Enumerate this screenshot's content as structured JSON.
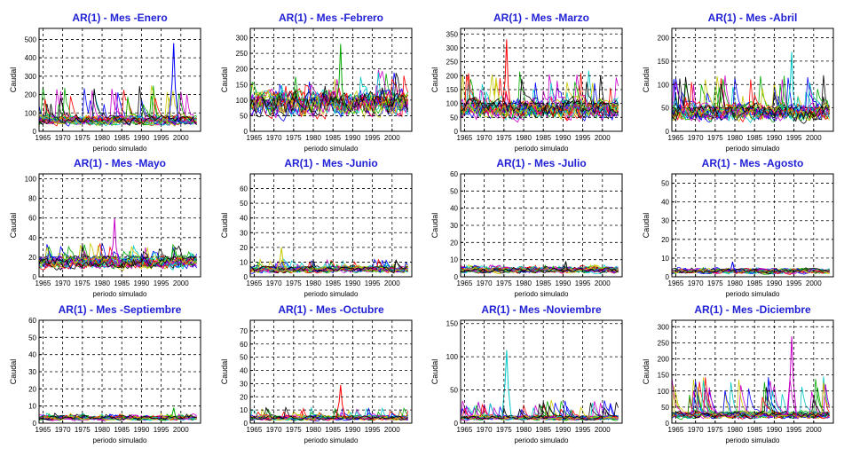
{
  "figure": {
    "xlabel": "periodo simulado",
    "ylabel": "Caudal",
    "title_color": "#1f1fd6",
    "series_colors": [
      "#0000ff",
      "#00aa00",
      "#ff0000",
      "#00c8c8",
      "#c800c8",
      "#c8c800",
      "#000000"
    ]
  },
  "chart_data": [
    {
      "type": "line",
      "title": "AR(1) - Mes -Enero",
      "xlabel": "periodo simulado",
      "ylabel": "Caudal",
      "xlim": [
        1964,
        2005
      ],
      "ylim": [
        0,
        560
      ],
      "xticks": [
        1965,
        1970,
        1975,
        1980,
        1985,
        1990,
        1995,
        2000
      ],
      "yticks": [
        0,
        100,
        200,
        300,
        400,
        500
      ],
      "typical_level": 60,
      "typical_peak": 250,
      "max_peak": 480,
      "grid": true
    },
    {
      "type": "line",
      "title": "AR(1) - Mes -Febrero",
      "xlabel": "periodo simulado",
      "ylabel": "Caudal",
      "xlim": [
        1964,
        2005
      ],
      "ylim": [
        0,
        330
      ],
      "xticks": [
        1965,
        1970,
        1975,
        1980,
        1985,
        1990,
        1995,
        2000
      ],
      "yticks": [
        0,
        50,
        100,
        150,
        200,
        250,
        300
      ],
      "typical_level": 90,
      "typical_peak": 200,
      "max_peak": 280,
      "grid": true
    },
    {
      "type": "line",
      "title": "AR(1) - Mes -Marzo",
      "xlabel": "periodo simulado",
      "ylabel": "Caudal",
      "xlim": [
        1964,
        2005
      ],
      "ylim": [
        0,
        370
      ],
      "xticks": [
        1965,
        1970,
        1975,
        1980,
        1985,
        1990,
        1995,
        2000
      ],
      "yticks": [
        0,
        50,
        100,
        150,
        200,
        250,
        300,
        350
      ],
      "typical_level": 80,
      "typical_peak": 220,
      "max_peak": 330,
      "grid": true
    },
    {
      "type": "line",
      "title": "AR(1) - Mes -Abril",
      "xlabel": "periodo simulado",
      "ylabel": "Caudal",
      "xlim": [
        1964,
        2005
      ],
      "ylim": [
        0,
        220
      ],
      "xticks": [
        1965,
        1970,
        1975,
        1980,
        1985,
        1990,
        1995,
        2000
      ],
      "yticks": [
        0,
        50,
        100,
        150,
        200
      ],
      "typical_level": 40,
      "typical_peak": 120,
      "max_peak": 170,
      "grid": true
    },
    {
      "type": "line",
      "title": "AR(1) - Mes -Mayo",
      "xlabel": "periodo simulado",
      "ylabel": "Caudal",
      "xlim": [
        1964,
        2005
      ],
      "ylim": [
        0,
        105
      ],
      "xticks": [
        1965,
        1970,
        1975,
        1980,
        1985,
        1990,
        1995,
        2000
      ],
      "yticks": [
        0,
        20,
        40,
        60,
        80,
        100
      ],
      "typical_level": 15,
      "typical_peak": 35,
      "max_peak": 60,
      "grid": true
    },
    {
      "type": "line",
      "title": "AR(1) - Mes -Junio",
      "xlabel": "periodo simulado",
      "ylabel": "Caudal",
      "xlim": [
        1964,
        2005
      ],
      "ylim": [
        0,
        70
      ],
      "xticks": [
        1965,
        1970,
        1975,
        1980,
        1985,
        1990,
        1995,
        2000
      ],
      "yticks": [
        0,
        10,
        20,
        30,
        40,
        50,
        60
      ],
      "typical_level": 5,
      "typical_peak": 12,
      "max_peak": 20,
      "grid": true
    },
    {
      "type": "line",
      "title": "AR(1) - Mes -Julio",
      "xlabel": "periodo simulado",
      "ylabel": "Caudal",
      "xlim": [
        1964,
        2005
      ],
      "ylim": [
        0,
        60
      ],
      "xticks": [
        1965,
        1970,
        1975,
        1980,
        1985,
        1990,
        1995,
        2000
      ],
      "yticks": [
        0,
        10,
        20,
        30,
        40,
        50,
        60
      ],
      "typical_level": 4,
      "typical_peak": 7,
      "max_peak": 9,
      "grid": true
    },
    {
      "type": "line",
      "title": "AR(1) - Mes -Agosto",
      "xlabel": "periodo simulado",
      "ylabel": "Caudal",
      "xlim": [
        1964,
        2005
      ],
      "ylim": [
        0,
        55
      ],
      "xticks": [
        1965,
        1970,
        1975,
        1980,
        1985,
        1990,
        1995,
        2000
      ],
      "yticks": [
        0,
        10,
        20,
        30,
        40,
        50
      ],
      "typical_level": 3,
      "typical_peak": 5,
      "max_peak": 8,
      "grid": true
    },
    {
      "type": "line",
      "title": "AR(1) - Mes -Septiembre",
      "xlabel": "periodo simulado",
      "ylabel": "Caudal",
      "xlim": [
        1964,
        2005
      ],
      "ylim": [
        0,
        60
      ],
      "xticks": [
        1965,
        1970,
        1975,
        1980,
        1985,
        1990,
        1995,
        2000
      ],
      "yticks": [
        0,
        10,
        20,
        30,
        40,
        50,
        60
      ],
      "typical_level": 3,
      "typical_peak": 6,
      "max_peak": 9,
      "grid": true
    },
    {
      "type": "line",
      "title": "AR(1) - Mes -Octubre",
      "xlabel": "periodo simulado",
      "ylabel": "Caudal",
      "xlim": [
        1964,
        2005
      ],
      "ylim": [
        0,
        78
      ],
      "xticks": [
        1965,
        1970,
        1975,
        1980,
        1985,
        1990,
        1995,
        2000
      ],
      "yticks": [
        0,
        10,
        20,
        30,
        40,
        50,
        60,
        70
      ],
      "typical_level": 4,
      "typical_peak": 12,
      "max_peak": 29,
      "grid": true
    },
    {
      "type": "line",
      "title": "AR(1) - Mes -Noviembre",
      "xlabel": "periodo simulado",
      "ylabel": "Caudal",
      "xlim": [
        1964,
        2005
      ],
      "ylim": [
        0,
        155
      ],
      "xticks": [
        1965,
        1970,
        1975,
        1980,
        1985,
        1990,
        1995,
        2000
      ],
      "yticks": [
        0,
        50,
        100,
        150
      ],
      "typical_level": 8,
      "typical_peak": 35,
      "max_peak": 110,
      "grid": true
    },
    {
      "type": "line",
      "title": "AR(1) - Mes -Diciembre",
      "xlabel": "periodo simulado",
      "ylabel": "Caudal",
      "xlim": [
        1964,
        2005
      ],
      "ylim": [
        0,
        320
      ],
      "xticks": [
        1965,
        1970,
        1975,
        1980,
        1985,
        1990,
        1995,
        2000
      ],
      "yticks": [
        0,
        50,
        100,
        150,
        200,
        250,
        300
      ],
      "typical_level": 25,
      "typical_peak": 150,
      "max_peak": 270,
      "grid": true
    }
  ]
}
